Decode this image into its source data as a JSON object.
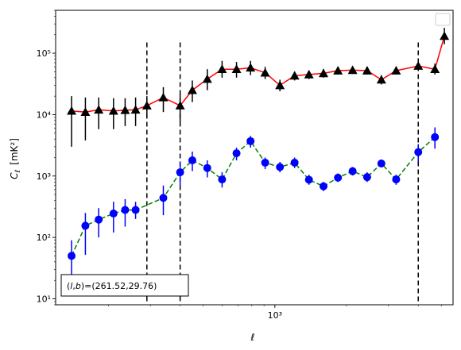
{
  "chart_data": {
    "type": "line",
    "xlabel": "ℓ",
    "ylabel_main": "C",
    "ylabel_sub": "ℓ",
    "ylabel_unit": "[mK²]",
    "x_scale": "log",
    "y_scale": "log",
    "xlim": [
      120,
      5600
    ],
    "ylim": [
      8,
      500000
    ],
    "grid": false,
    "legend": "top-right, empty",
    "xticks": [
      {
        "value": 1000,
        "label": "10³"
      }
    ],
    "yticks": [
      {
        "value": 10,
        "label": "10¹"
      },
      {
        "value": 100,
        "label": "10²"
      },
      {
        "value": 1000,
        "label": "10³"
      },
      {
        "value": 10000,
        "label": "10⁴"
      },
      {
        "value": 100000,
        "label": "10⁵"
      }
    ],
    "annotation": "(l, b)=(261.52,29.76)",
    "vlines": [
      {
        "x": 290,
        "y_top": 150000
      },
      {
        "x": 400,
        "y_top": 150000
      },
      {
        "x": 4000,
        "y_top": 150000
      }
    ],
    "series": [
      {
        "color": "#ff0000",
        "marker_color": "#000000",
        "marker": "triangle",
        "linestyle": "solid",
        "points": [
          {
            "x": 140,
            "y": 11500,
            "lo": 3000,
            "hi": 20000
          },
          {
            "x": 160,
            "y": 11000,
            "lo": 3800,
            "hi": 19000
          },
          {
            "x": 182,
            "y": 12000,
            "lo": 5800,
            "hi": 19000
          },
          {
            "x": 210,
            "y": 11500,
            "lo": 5800,
            "hi": 18500
          },
          {
            "x": 235,
            "y": 11800,
            "lo": 6500,
            "hi": 18500
          },
          {
            "x": 260,
            "y": 12000,
            "lo": 6500,
            "hi": 19000
          },
          {
            "x": 290,
            "y": 14000,
            "lo": 9000,
            "hi": 20000
          },
          {
            "x": 340,
            "y": 19000,
            "lo": 11000,
            "hi": 28000
          },
          {
            "x": 400,
            "y": 14000,
            "lo": 7500,
            "hi": 21000
          },
          {
            "x": 450,
            "y": 25000,
            "lo": 16000,
            "hi": 36000
          },
          {
            "x": 520,
            "y": 38000,
            "lo": 25000,
            "hi": 55000
          },
          {
            "x": 600,
            "y": 55000,
            "lo": 40000,
            "hi": 75000
          },
          {
            "x": 690,
            "y": 55000,
            "lo": 40000,
            "hi": 72000
          },
          {
            "x": 790,
            "y": 58000,
            "lo": 44000,
            "hi": 75000
          },
          {
            "x": 910,
            "y": 48000,
            "lo": 38000,
            "hi": 60000
          },
          {
            "x": 1050,
            "y": 30000,
            "lo": 24000,
            "hi": 37000
          },
          {
            "x": 1210,
            "y": 43000,
            "lo": 36000,
            "hi": 50000
          },
          {
            "x": 1390,
            "y": 45000,
            "lo": 38000,
            "hi": 52000
          },
          {
            "x": 1600,
            "y": 47000,
            "lo": 40000,
            "hi": 55000
          },
          {
            "x": 1840,
            "y": 52000,
            "lo": 45000,
            "hi": 60000
          },
          {
            "x": 2120,
            "y": 53000,
            "lo": 46000,
            "hi": 61000
          },
          {
            "x": 2440,
            "y": 52000,
            "lo": 45000,
            "hi": 60000
          },
          {
            "x": 2800,
            "y": 37000,
            "lo": 31000,
            "hi": 44000
          },
          {
            "x": 3230,
            "y": 52000,
            "lo": 45000,
            "hi": 60000
          },
          {
            "x": 4000,
            "y": 62000,
            "lo": 53000,
            "hi": 72000
          },
          {
            "x": 4700,
            "y": 55000,
            "lo": 45000,
            "hi": 68000
          },
          {
            "x": 5150,
            "y": 190000,
            "lo": 140000,
            "hi": 260000
          }
        ]
      },
      {
        "color": "#008000",
        "marker_color": "#0000ff",
        "marker": "circle",
        "linestyle": "dashed",
        "points": [
          {
            "x": 140,
            "y": 50,
            "lo": 20,
            "hi": 90
          },
          {
            "x": 160,
            "y": 155,
            "lo": 52,
            "hi": 250
          },
          {
            "x": 182,
            "y": 195,
            "lo": 100,
            "hi": 300
          },
          {
            "x": 210,
            "y": 245,
            "lo": 120,
            "hi": 380
          },
          {
            "x": 235,
            "y": 280,
            "lo": 150,
            "hi": 420
          },
          {
            "x": 260,
            "y": 280,
            "lo": 200,
            "hi": 380
          },
          {
            "x": 340,
            "y": 440,
            "lo": 230,
            "hi": 700
          },
          {
            "x": 400,
            "y": 1150,
            "lo": 700,
            "hi": 1700
          },
          {
            "x": 450,
            "y": 1800,
            "lo": 1200,
            "hi": 2500
          },
          {
            "x": 520,
            "y": 1350,
            "lo": 950,
            "hi": 1800
          },
          {
            "x": 600,
            "y": 880,
            "lo": 650,
            "hi": 1150
          },
          {
            "x": 690,
            "y": 2350,
            "lo": 1800,
            "hi": 2900
          },
          {
            "x": 790,
            "y": 3700,
            "lo": 2900,
            "hi": 4500
          },
          {
            "x": 910,
            "y": 1650,
            "lo": 1300,
            "hi": 2000
          },
          {
            "x": 1050,
            "y": 1400,
            "lo": 1150,
            "hi": 1700
          },
          {
            "x": 1210,
            "y": 1650,
            "lo": 1350,
            "hi": 2000
          },
          {
            "x": 1390,
            "y": 870,
            "lo": 720,
            "hi": 1050
          },
          {
            "x": 1600,
            "y": 680,
            "lo": 570,
            "hi": 800
          },
          {
            "x": 1840,
            "y": 940,
            "lo": 800,
            "hi": 1100
          },
          {
            "x": 2120,
            "y": 1200,
            "lo": 1020,
            "hi": 1400
          },
          {
            "x": 2440,
            "y": 960,
            "lo": 800,
            "hi": 1150
          },
          {
            "x": 2800,
            "y": 1600,
            "lo": 1380,
            "hi": 1850
          },
          {
            "x": 3230,
            "y": 880,
            "lo": 720,
            "hi": 1050
          },
          {
            "x": 4000,
            "y": 2450,
            "lo": 1700,
            "hi": 3300
          },
          {
            "x": 4700,
            "y": 4300,
            "lo": 2800,
            "hi": 6200
          }
        ]
      }
    ]
  }
}
